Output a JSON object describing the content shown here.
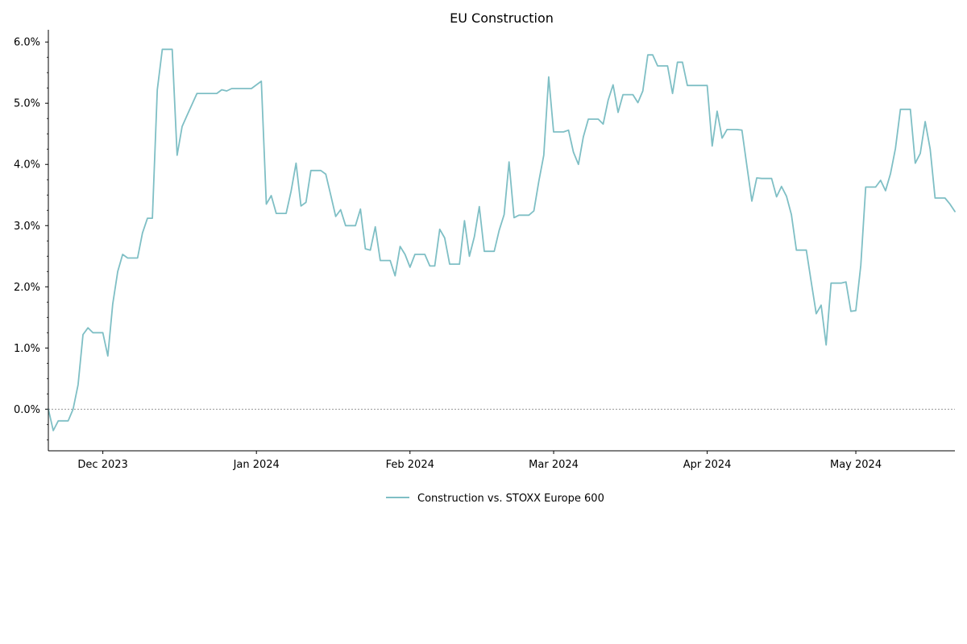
{
  "chart_data": {
    "type": "line",
    "title": "EU Construction",
    "xlabel": "",
    "ylabel": "",
    "ylim": [
      -0.68,
      6.2
    ],
    "xlim": [
      "2023-11-20",
      "2024-05-21"
    ],
    "y_ticks": [
      0,
      1,
      2,
      3,
      4,
      5,
      6
    ],
    "y_tick_labels": [
      "0.0%",
      "1.0%",
      "2.0%",
      "3.0%",
      "4.0%",
      "5.0%",
      "6.0%"
    ],
    "x_ticks": [
      "2023-12-01",
      "2024-01-01",
      "2024-02-01",
      "2024-03-01",
      "2024-04-01",
      "2024-05-01"
    ],
    "x_tick_labels": [
      "Dec 2023",
      "Jan 2024",
      "Feb 2024",
      "Mar 2024",
      "Apr 2024",
      "May 2024"
    ],
    "zero_line": true,
    "grid": false,
    "legend_position": "bottom-center",
    "series": [
      {
        "name": "Construction vs. STOXX Europe 600",
        "color": "#7fbfc5",
        "points": [
          [
            "2023-11-20",
            0.0
          ],
          [
            "2023-11-21",
            -0.35
          ],
          [
            "2023-11-22",
            -0.19
          ],
          [
            "2023-11-24",
            -0.19
          ],
          [
            "2023-11-25",
            0.0
          ],
          [
            "2023-11-26",
            0.4
          ],
          [
            "2023-11-27",
            1.22
          ],
          [
            "2023-11-28",
            1.33
          ],
          [
            "2023-11-29",
            1.25
          ],
          [
            "2023-12-01",
            1.25
          ],
          [
            "2023-12-02",
            0.87
          ],
          [
            "2023-12-03",
            1.72
          ],
          [
            "2023-12-04",
            2.25
          ],
          [
            "2023-12-05",
            2.53
          ],
          [
            "2023-12-06",
            2.47
          ],
          [
            "2023-12-08",
            2.47
          ],
          [
            "2023-12-09",
            2.88
          ],
          [
            "2023-12-10",
            3.12
          ],
          [
            "2023-12-11",
            3.12
          ],
          [
            "2023-12-12",
            5.22
          ],
          [
            "2023-12-13",
            5.88
          ],
          [
            "2023-12-15",
            5.88
          ],
          [
            "2023-12-16",
            4.15
          ],
          [
            "2023-12-17",
            4.62
          ],
          [
            "2023-12-18",
            4.8
          ],
          [
            "2023-12-20",
            5.16
          ],
          [
            "2023-12-24",
            5.16
          ],
          [
            "2023-12-25",
            5.22
          ],
          [
            "2023-12-26",
            5.2
          ],
          [
            "2023-12-27",
            5.24
          ],
          [
            "2023-12-31",
            5.24
          ],
          [
            "2024-01-02",
            5.36
          ],
          [
            "2024-01-03",
            3.35
          ],
          [
            "2024-01-04",
            3.49
          ],
          [
            "2024-01-05",
            3.2
          ],
          [
            "2024-01-07",
            3.2
          ],
          [
            "2024-01-08",
            3.56
          ],
          [
            "2024-01-09",
            4.02
          ],
          [
            "2024-01-10",
            3.32
          ],
          [
            "2024-01-11",
            3.38
          ],
          [
            "2024-01-12",
            3.9
          ],
          [
            "2024-01-14",
            3.9
          ],
          [
            "2024-01-15",
            3.84
          ],
          [
            "2024-01-16",
            3.5
          ],
          [
            "2024-01-17",
            3.15
          ],
          [
            "2024-01-18",
            3.26
          ],
          [
            "2024-01-19",
            3.0
          ],
          [
            "2024-01-21",
            3.0
          ],
          [
            "2024-01-22",
            3.27
          ],
          [
            "2024-01-23",
            2.62
          ],
          [
            "2024-01-24",
            2.6
          ],
          [
            "2024-01-25",
            2.98
          ],
          [
            "2024-01-26",
            2.43
          ],
          [
            "2024-01-28",
            2.43
          ],
          [
            "2024-01-29",
            2.18
          ],
          [
            "2024-01-30",
            2.66
          ],
          [
            "2024-01-31",
            2.53
          ],
          [
            "2024-02-01",
            2.32
          ],
          [
            "2024-02-02",
            2.53
          ],
          [
            "2024-02-04",
            2.53
          ],
          [
            "2024-02-05",
            2.34
          ],
          [
            "2024-02-06",
            2.34
          ],
          [
            "2024-02-07",
            2.94
          ],
          [
            "2024-02-08",
            2.8
          ],
          [
            "2024-02-09",
            2.37
          ],
          [
            "2024-02-11",
            2.37
          ],
          [
            "2024-02-12",
            3.08
          ],
          [
            "2024-02-13",
            2.5
          ],
          [
            "2024-02-14",
            2.82
          ],
          [
            "2024-02-15",
            3.31
          ],
          [
            "2024-02-16",
            2.58
          ],
          [
            "2024-02-18",
            2.58
          ],
          [
            "2024-02-19",
            2.92
          ],
          [
            "2024-02-20",
            3.18
          ],
          [
            "2024-02-21",
            4.04
          ],
          [
            "2024-02-22",
            3.13
          ],
          [
            "2024-02-23",
            3.17
          ],
          [
            "2024-02-25",
            3.17
          ],
          [
            "2024-02-26",
            3.24
          ],
          [
            "2024-02-27",
            3.72
          ],
          [
            "2024-02-28",
            4.15
          ],
          [
            "2024-02-29",
            5.43
          ],
          [
            "2024-03-01",
            4.53
          ],
          [
            "2024-03-03",
            4.53
          ],
          [
            "2024-03-04",
            4.56
          ],
          [
            "2024-03-05",
            4.2
          ],
          [
            "2024-03-06",
            4.0
          ],
          [
            "2024-03-07",
            4.45
          ],
          [
            "2024-03-08",
            4.74
          ],
          [
            "2024-03-10",
            4.74
          ],
          [
            "2024-03-11",
            4.66
          ],
          [
            "2024-03-12",
            5.05
          ],
          [
            "2024-03-13",
            5.3
          ],
          [
            "2024-03-14",
            4.85
          ],
          [
            "2024-03-15",
            5.14
          ],
          [
            "2024-03-17",
            5.14
          ],
          [
            "2024-03-18",
            5.01
          ],
          [
            "2024-03-19",
            5.2
          ],
          [
            "2024-03-20",
            5.79
          ],
          [
            "2024-03-21",
            5.79
          ],
          [
            "2024-03-22",
            5.61
          ],
          [
            "2024-03-24",
            5.61
          ],
          [
            "2024-03-25",
            5.16
          ],
          [
            "2024-03-26",
            5.67
          ],
          [
            "2024-03-27",
            5.67
          ],
          [
            "2024-03-28",
            5.29
          ],
          [
            "2024-04-01",
            5.29
          ],
          [
            "2024-04-02",
            4.3
          ],
          [
            "2024-04-03",
            4.87
          ],
          [
            "2024-04-04",
            4.43
          ],
          [
            "2024-04-05",
            4.57
          ],
          [
            "2024-04-07",
            4.57
          ],
          [
            "2024-04-08",
            4.56
          ],
          [
            "2024-04-09",
            3.98
          ],
          [
            "2024-04-10",
            3.4
          ],
          [
            "2024-04-11",
            3.78
          ],
          [
            "2024-04-12",
            3.77
          ],
          [
            "2024-04-14",
            3.77
          ],
          [
            "2024-04-15",
            3.47
          ],
          [
            "2024-04-16",
            3.64
          ],
          [
            "2024-04-17",
            3.48
          ],
          [
            "2024-04-18",
            3.18
          ],
          [
            "2024-04-19",
            2.6
          ],
          [
            "2024-04-21",
            2.6
          ],
          [
            "2024-04-22",
            2.08
          ],
          [
            "2024-04-23",
            1.56
          ],
          [
            "2024-04-24",
            1.7
          ],
          [
            "2024-04-25",
            1.05
          ],
          [
            "2024-04-26",
            2.06
          ],
          [
            "2024-04-28",
            2.06
          ],
          [
            "2024-04-29",
            2.08
          ],
          [
            "2024-04-30",
            1.6
          ],
          [
            "2024-05-01",
            1.61
          ],
          [
            "2024-05-02",
            2.35
          ],
          [
            "2024-05-03",
            3.63
          ],
          [
            "2024-05-05",
            3.63
          ],
          [
            "2024-05-06",
            3.74
          ],
          [
            "2024-05-07",
            3.57
          ],
          [
            "2024-05-08",
            3.85
          ],
          [
            "2024-05-09",
            4.26
          ],
          [
            "2024-05-10",
            4.9
          ],
          [
            "2024-05-12",
            4.9
          ],
          [
            "2024-05-13",
            4.02
          ],
          [
            "2024-05-14",
            4.18
          ],
          [
            "2024-05-15",
            4.7
          ],
          [
            "2024-05-16",
            4.25
          ],
          [
            "2024-05-17",
            3.45
          ],
          [
            "2024-05-19",
            3.45
          ],
          [
            "2024-05-20",
            3.35
          ],
          [
            "2024-05-21",
            3.23
          ]
        ]
      }
    ]
  }
}
